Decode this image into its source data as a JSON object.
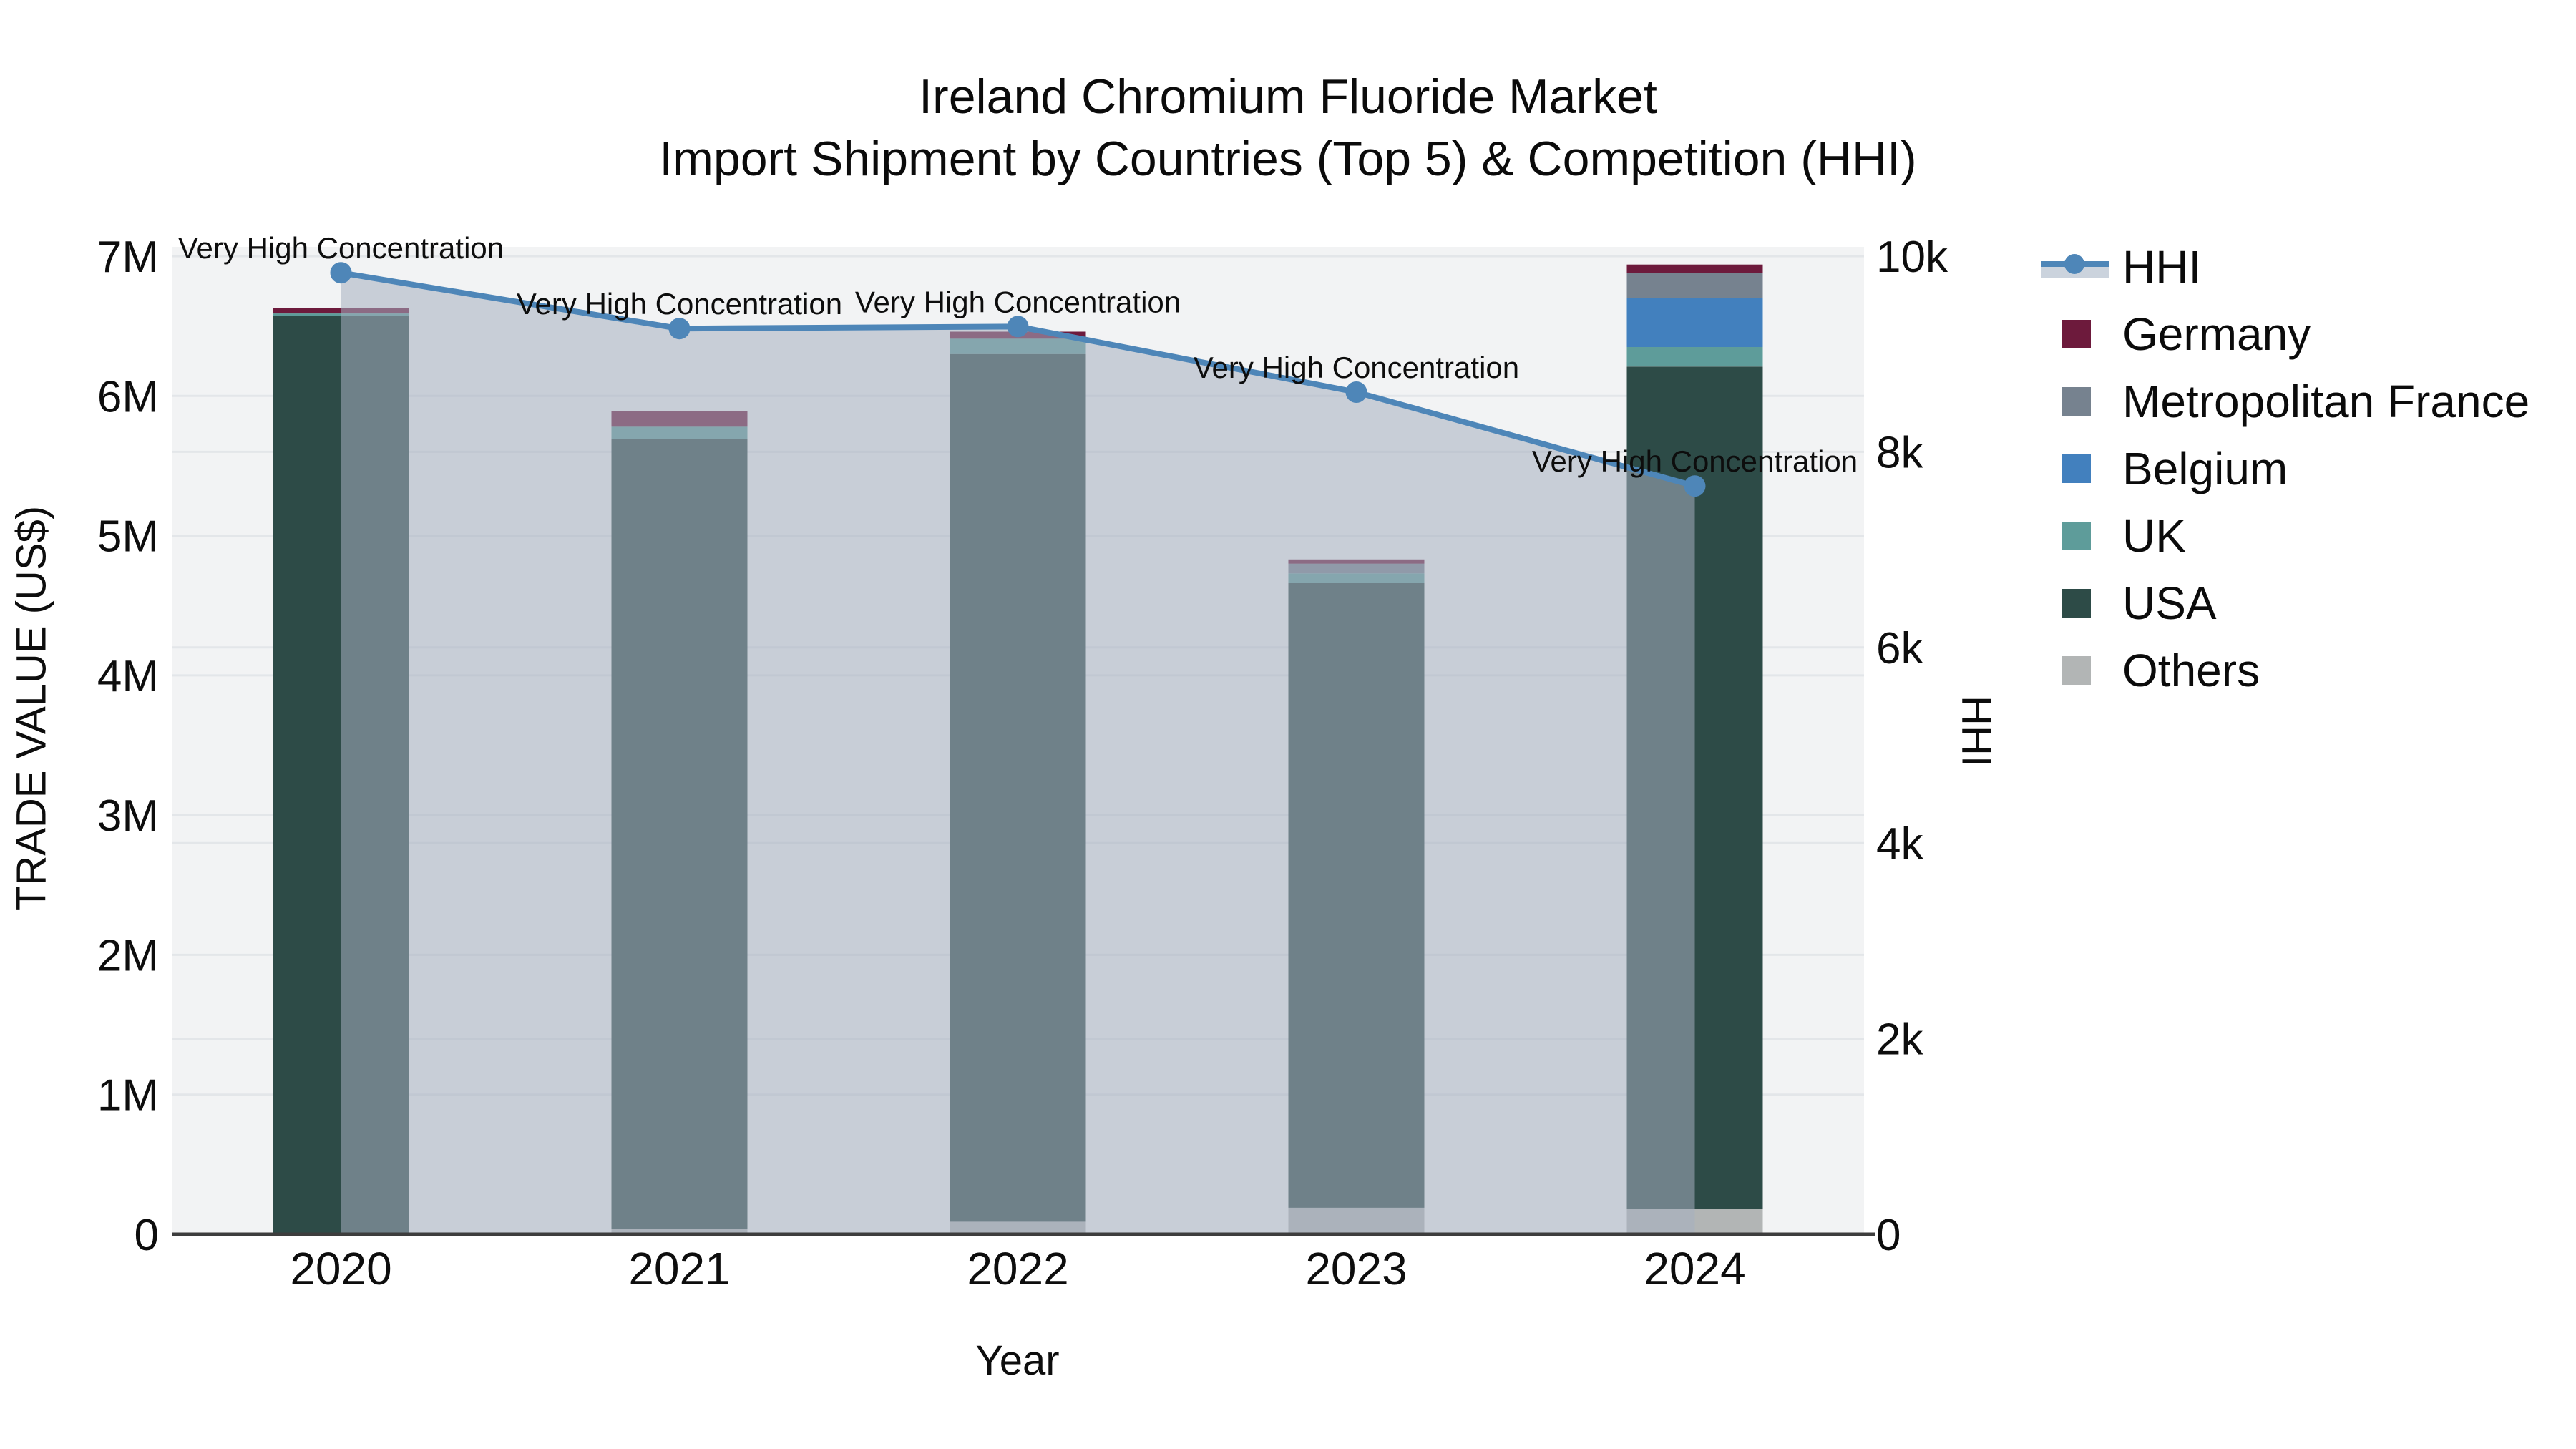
{
  "figure": {
    "title_line1": "Ireland Chromium Fluoride Market",
    "title_line2": "Import Shipment by Countries (Top 5) & Competition (HHI)"
  },
  "chart_data": {
    "type": "bar+line",
    "subtype": "stacked bars (left axis) with HHI line + area fill (right axis)",
    "categories": [
      "2020",
      "2021",
      "2022",
      "2023",
      "2024"
    ],
    "x_title": "Year",
    "y1_title": "TRADE VALUE (US$)",
    "y2_title": "HHI",
    "y1_ticks": [
      "0",
      "1M",
      "2M",
      "3M",
      "4M",
      "5M",
      "6M",
      "7M"
    ],
    "y1_tick_values": [
      0,
      1000000,
      2000000,
      3000000,
      4000000,
      5000000,
      6000000,
      7000000
    ],
    "y2_ticks": [
      "0",
      "2k",
      "4k",
      "6k",
      "8k",
      "10k"
    ],
    "y2_tick_values": [
      0,
      2000,
      4000,
      6000,
      8000,
      10000
    ],
    "y1_range": [
      0,
      7070000
    ],
    "y2_range": [
      0,
      10100
    ],
    "grid": "on",
    "legend_position": "right",
    "stack_order_bottom_to_top": [
      "others",
      "usa",
      "uk",
      "belgium",
      "metropolitan_france",
      "germany"
    ],
    "series": [
      {
        "key": "others",
        "name": "Others",
        "color": "#B2B5B5",
        "values": [
          0,
          40000,
          90000,
          190000,
          180000
        ]
      },
      {
        "key": "usa",
        "name": "USA",
        "color": "#2D4B47",
        "values": [
          6570000,
          5650000,
          6210000,
          4470000,
          6030000
        ]
      },
      {
        "key": "uk",
        "name": "UK",
        "color": "#5E9C9A",
        "values": [
          20000,
          90000,
          110000,
          70000,
          140000
        ]
      },
      {
        "key": "belgium",
        "name": "Belgium",
        "color": "#4280BE",
        "values": [
          0,
          0,
          0,
          0,
          350000
        ]
      },
      {
        "key": "metropolitan_france",
        "name": "Metropolitan France",
        "color": "#76828F",
        "values": [
          0,
          0,
          0,
          70000,
          180000
        ]
      },
      {
        "key": "germany",
        "name": "Germany",
        "color": "#6D1A3C",
        "values": [
          40000,
          110000,
          50000,
          30000,
          60000
        ]
      }
    ],
    "line_series": {
      "key": "hhi",
      "name": "HHI",
      "color": "#4E86B8",
      "area_fill": "rgba(165,175,192,0.55)",
      "values": [
        9830,
        9260,
        9280,
        8610,
        7650
      ]
    },
    "annotations": [
      {
        "x": "2020",
        "text": "Very High Concentration"
      },
      {
        "x": "2021",
        "text": "Very High Concentration"
      },
      {
        "x": "2022",
        "text": "Very High Concentration"
      },
      {
        "x": "2023",
        "text": "Very High Concentration"
      },
      {
        "x": "2024",
        "text": "Very High Concentration"
      }
    ],
    "legend_order": [
      "hhi",
      "germany",
      "metropolitan_france",
      "belgium",
      "uk",
      "usa",
      "others"
    ],
    "colors": {
      "plot_bg": "#F2F3F4",
      "paper_bg": "#FFFFFF",
      "grid_line": "#E3E6E9",
      "axis_line": "#3D3D3D",
      "text": "#0b0b0b"
    }
  }
}
